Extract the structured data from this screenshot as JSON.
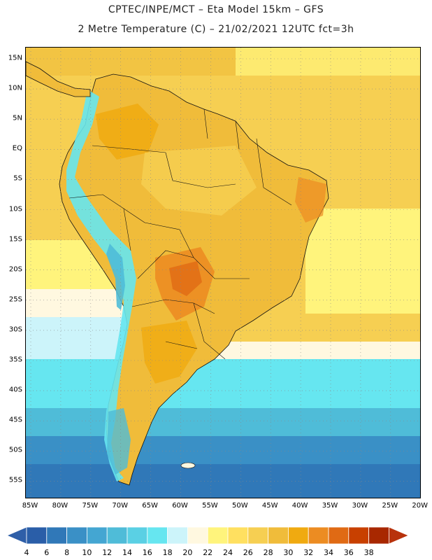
{
  "title": {
    "line1": "CPTEC/INPE/MCT –  Eta Model 15km – GFS",
    "line2": "2 Metre Temperature (C) – 21/02/2021 12UTC fct=3h"
  },
  "map": {
    "lon_range": [
      -86,
      -19
    ],
    "lat_range": [
      -57.5,
      17
    ],
    "lon_ticks": [
      "85W",
      "80W",
      "75W",
      "70W",
      "65W",
      "60W",
      "55W",
      "50W",
      "45W",
      "40W",
      "35W",
      "30W",
      "25W",
      "20W"
    ],
    "lat_ticks": [
      "15N",
      "10N",
      "5N",
      "EQ",
      "5S",
      "10S",
      "15S",
      "20S",
      "25S",
      "30S",
      "35S",
      "40S",
      "45S",
      "50S",
      "55S"
    ]
  },
  "colorbar": {
    "labels": [
      "4",
      "6",
      "8",
      "10",
      "12",
      "14",
      "16",
      "18",
      "20",
      "22",
      "24",
      "26",
      "28",
      "30",
      "32",
      "34",
      "36",
      "38"
    ],
    "colors": [
      "#2a5ea8",
      "#3078b8",
      "#3a90c6",
      "#44a6d2",
      "#4fbcd8",
      "#5ad0e4",
      "#66e6f0",
      "#ccf4fa",
      "#fff8e0",
      "#fff47c",
      "#ffe060",
      "#f6cf52",
      "#f0bc3a",
      "#f0aa10",
      "#ec8c22",
      "#e06a14",
      "#c84000",
      "#a82800"
    ],
    "low_color": "#2f5fa8",
    "high_color": "#b8320c"
  }
}
